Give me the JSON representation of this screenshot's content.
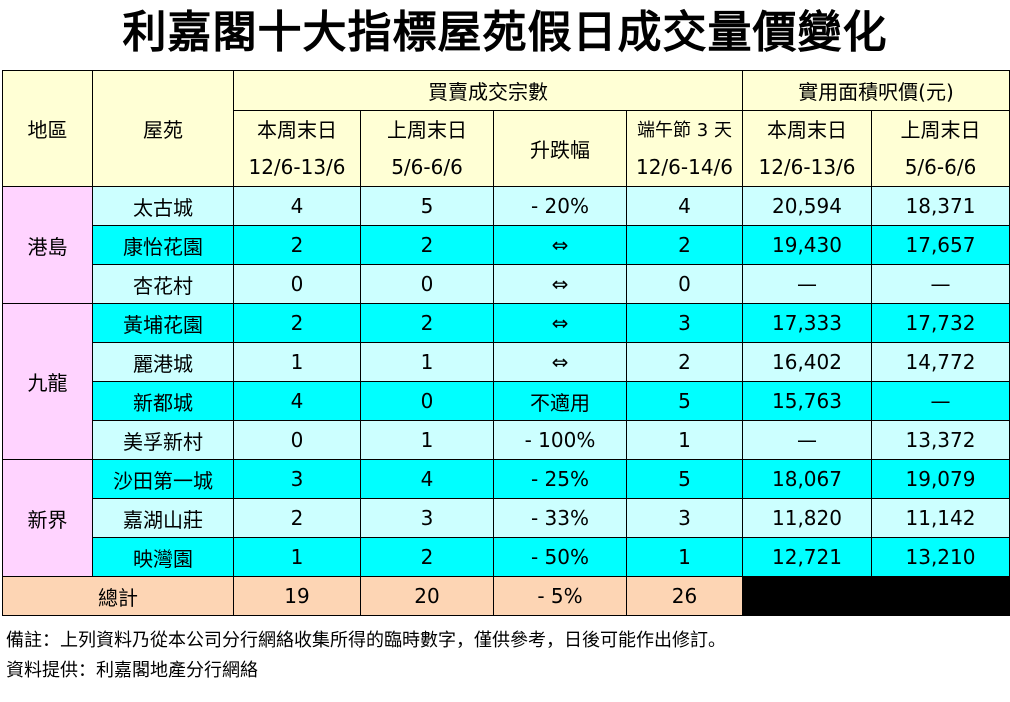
{
  "title": "利嘉閣十大指標屋苑假日成交量價變化",
  "headers": {
    "region": "地區",
    "estate": "屋苑",
    "transactions_group": "買賣成交宗數",
    "price_group": "實用面積呎價(元)",
    "this_weekend": "本周末日",
    "this_weekend_dates": "12/6-13/6",
    "last_weekend": "上周末日",
    "last_weekend_dates": "5/6-6/6",
    "change": "升跌幅",
    "dragon_boat": "端午節 3 天",
    "dragon_boat_dates": "12/6-14/6",
    "price_this_weekend": "本周末日",
    "price_this_weekend_dates": "12/6-13/6",
    "price_last_weekend": "上周末日",
    "price_last_weekend_dates": "5/6-6/6"
  },
  "regions": [
    {
      "name": "港島",
      "rows": [
        {
          "estate": "太古城",
          "this_wk": "4",
          "last_wk": "5",
          "change": "- 20%",
          "holiday": "4",
          "price_this": "20,594",
          "price_last": "18,371",
          "shade": "light"
        },
        {
          "estate": "康怡花園",
          "this_wk": "2",
          "last_wk": "2",
          "change": "⇔",
          "holiday": "2",
          "price_this": "19,430",
          "price_last": "17,657",
          "shade": "cyan"
        },
        {
          "estate": "杏花村",
          "this_wk": "0",
          "last_wk": "0",
          "change": "⇔",
          "holiday": "0",
          "price_this": "—",
          "price_last": "—",
          "shade": "light"
        }
      ]
    },
    {
      "name": "九龍",
      "rows": [
        {
          "estate": "黃埔花園",
          "this_wk": "2",
          "last_wk": "2",
          "change": "⇔",
          "holiday": "3",
          "price_this": "17,333",
          "price_last": "17,732",
          "shade": "cyan"
        },
        {
          "estate": "麗港城",
          "this_wk": "1",
          "last_wk": "1",
          "change": "⇔",
          "holiday": "2",
          "price_this": "16,402",
          "price_last": "14,772",
          "shade": "light"
        },
        {
          "estate": "新都城",
          "this_wk": "4",
          "last_wk": "0",
          "change": "不適用",
          "holiday": "5",
          "price_this": "15,763",
          "price_last": "—",
          "shade": "cyan"
        },
        {
          "estate": "美孚新村",
          "this_wk": "0",
          "last_wk": "1",
          "change": "- 100%",
          "holiday": "1",
          "price_this": "—",
          "price_last": "13,372",
          "shade": "light"
        }
      ]
    },
    {
      "name": "新界",
      "rows": [
        {
          "estate": "沙田第一城",
          "this_wk": "3",
          "last_wk": "4",
          "change": "- 25%",
          "holiday": "5",
          "price_this": "18,067",
          "price_last": "19,079",
          "shade": "cyan"
        },
        {
          "estate": "嘉湖山莊",
          "this_wk": "2",
          "last_wk": "3",
          "change": "- 33%",
          "holiday": "3",
          "price_this": "11,820",
          "price_last": "11,142",
          "shade": "light"
        },
        {
          "estate": "映灣園",
          "this_wk": "1",
          "last_wk": "2",
          "change": "- 50%",
          "holiday": "1",
          "price_this": "12,721",
          "price_last": "13,210",
          "shade": "cyan"
        }
      ]
    }
  ],
  "total": {
    "label": "總計",
    "this_wk": "19",
    "last_wk": "20",
    "change": "- 5%",
    "holiday": "26"
  },
  "notes": {
    "remark": "備註：上列資料乃從本公司分行網絡收集所得的臨時數字，僅供參考，日後可能作出修訂。",
    "source": "資料提供：利嘉閣地產分行網絡"
  },
  "colors": {
    "header_bg": "#ffffd5",
    "region_bg": "#ffd3ff",
    "row_light": "#ccffff",
    "row_cyan": "#00ffff",
    "total_bg": "#fdd5b4"
  }
}
